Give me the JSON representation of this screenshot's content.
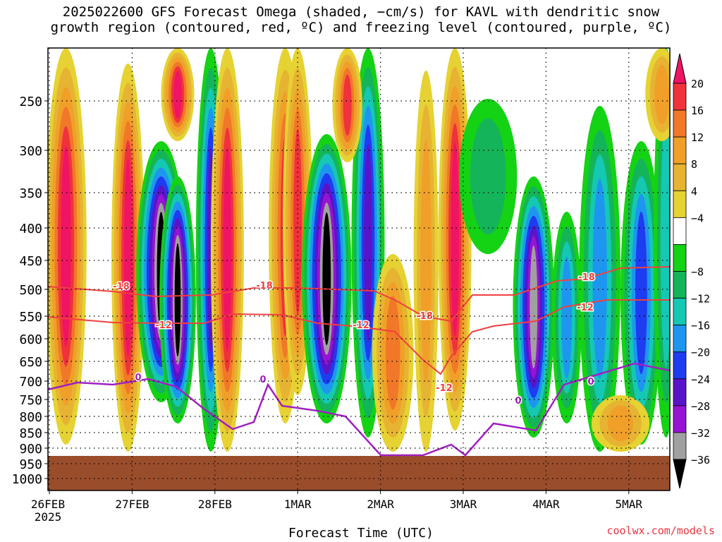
{
  "title_line1": "2025022600 GFS Forecast Omega (shaded, −cm/s) for KAVL with dendritic snow",
  "title_line2": "growth region (contoured, red, ºC) and freezing level (contoured, purple, ºC)",
  "xlabel": "Forecast Time (UTC)",
  "credit": "coolwx.com/models",
  "colors": {
    "terrain": "#9a4d2b",
    "dgz_contour": "#f04040",
    "freezing_contour": "#a020c0"
  },
  "chart_data": {
    "type": "heatmap",
    "y_axis": {
      "label": "",
      "scale": "pressure (inverted)",
      "range": [
        1000,
        200
      ],
      "ticks": [
        "250",
        "300",
        "350",
        "400",
        "450",
        "500",
        "550",
        "600",
        "650",
        "700",
        "750",
        "800",
        "850",
        "900",
        "950",
        "1000"
      ]
    },
    "x_axis": {
      "label": "Forecast Time (UTC)",
      "range": [
        "26FEB 00Z",
        "5MAR 12Z"
      ],
      "ticks": [
        "26FEB",
        "27FEB",
        "28FEB",
        "1MAR",
        "2MAR",
        "3MAR",
        "4MAR",
        "5MAR"
      ],
      "year_label": "2025"
    },
    "grid": true,
    "colorbar": {
      "position": "right",
      "tick_labels": [
        "20",
        "16",
        "12",
        "8",
        "4",
        "−4",
        "−8",
        "−12",
        "−16",
        "−20",
        "−24",
        "−28",
        "−32",
        "−36"
      ],
      "bins": [
        {
          "color": "#f01464"
        },
        {
          "color": "#f0323c"
        },
        {
          "color": "#f07828"
        },
        {
          "color": "#f0a028"
        },
        {
          "color": "#e6b432"
        },
        {
          "color": "#e6d232"
        },
        {
          "color": "#ffffff"
        },
        {
          "color": "#14d214"
        },
        {
          "color": "#14b45a"
        },
        {
          "color": "#14c8b4"
        },
        {
          "color": "#1e96f0"
        },
        {
          "color": "#1e3cf0"
        },
        {
          "color": "#5a14c8"
        },
        {
          "color": "#9614d2"
        },
        {
          "color": "#a0a0a0"
        },
        {
          "color": "#000000"
        }
      ]
    },
    "contour_labels": [
      {
        "text": "-18",
        "color": "red"
      },
      {
        "text": "-18",
        "color": "red"
      },
      {
        "text": "-18",
        "color": "red"
      },
      {
        "text": "-18",
        "color": "red"
      },
      {
        "text": "-12",
        "color": "red"
      },
      {
        "text": "-12",
        "color": "red"
      },
      {
        "text": "-12",
        "color": "red"
      },
      {
        "text": "-12",
        "color": "red"
      },
      {
        "text": "0",
        "color": "purple"
      },
      {
        "text": "0",
        "color": "purple"
      },
      {
        "text": "0",
        "color": "purple"
      },
      {
        "text": "0",
        "color": "purple"
      }
    ]
  }
}
